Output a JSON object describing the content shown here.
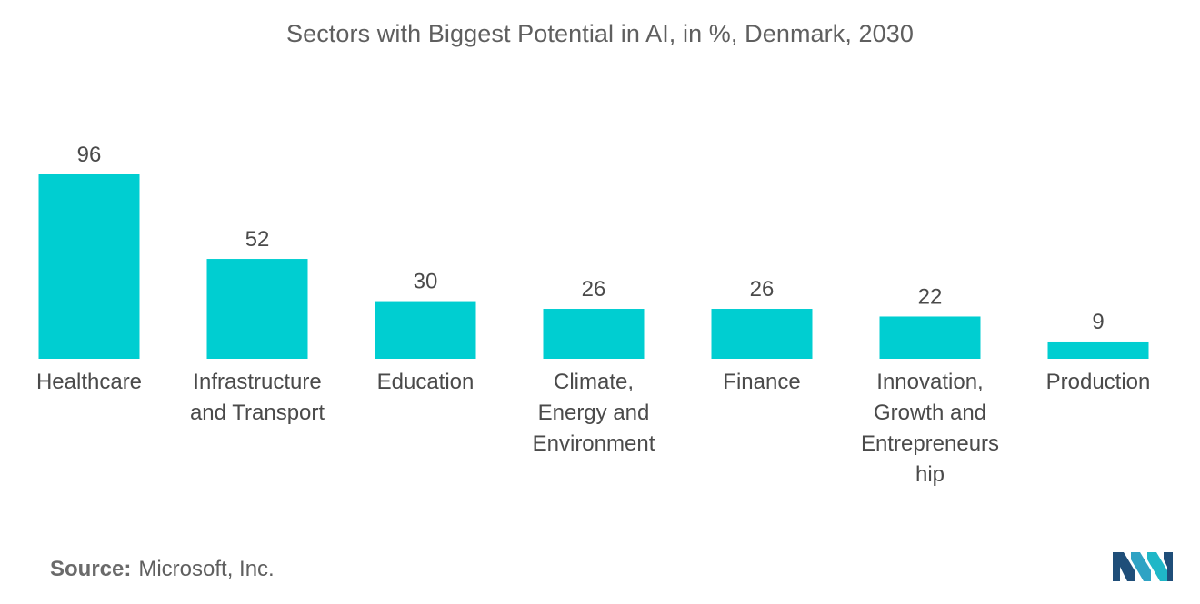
{
  "chart_data": {
    "type": "bar",
    "title": "Sectors with Biggest Potential in AI, in %, Denmark, 2030",
    "categories": [
      "Healthcare",
      "Infrastructure\nand Transport",
      "Education",
      "Climate,\nEnergy and\nEnvironment",
      "Finance",
      "Innovation,\nGrowth and\nEntrepreneurs\nhip",
      "Production"
    ],
    "values": [
      96,
      52,
      30,
      26,
      26,
      22,
      9
    ],
    "xlabel": "",
    "ylabel": "",
    "ylim": [
      0,
      96
    ],
    "grid": false,
    "legend": "none",
    "bar_color": "#00ced1",
    "data_labels": true
  },
  "source": {
    "label": "Source:",
    "value": "Microsoft, Inc."
  },
  "logo": {
    "icon": "mordor-intelligence-logo",
    "colors": [
      "#1f4e79",
      "#2fa3c4",
      "#1fb7c7"
    ]
  }
}
